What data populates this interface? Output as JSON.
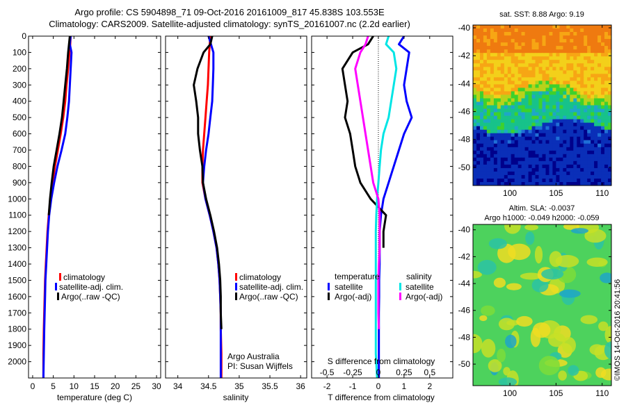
{
  "header": {
    "line1": "Argo profile: CS 5904898_71 09-Oct-2016 20161009_817 45.838S 103.553E",
    "line2": "Climatology: CARS2009. Satellite-adjusted climatology: synTS_20161007.nc (2.2d earlier)"
  },
  "stamp": "©IMOS 14-Oct-2016 20:41:56",
  "colors": {
    "climatology": "#ff0000",
    "satellite": "#0000ff",
    "argo": "#000000",
    "satellite_s": "#00e5e5",
    "argo_s": "#ff00ff"
  },
  "chart_data": [
    {
      "id": "temperature",
      "type": "line",
      "xlabel": "temperature (deg C)",
      "ylabel": "",
      "xlim": [
        -1,
        31
      ],
      "ylim": [
        2100,
        0
      ],
      "xticks": [
        0,
        5,
        10,
        15,
        20,
        25,
        30
      ],
      "yticks": [
        0,
        100,
        200,
        300,
        400,
        500,
        600,
        700,
        800,
        900,
        1000,
        1100,
        1200,
        1300,
        1400,
        1500,
        1600,
        1700,
        1800,
        1900,
        2000
      ],
      "legend": [
        "climatology",
        "satellite-adj. clim.",
        "Argo(..raw -QC)"
      ],
      "series": [
        {
          "name": "climatology",
          "color": "#ff0000",
          "x": [
            9.2,
            9.1,
            8.9,
            8.6,
            8.2,
            7.9,
            7.4,
            6.8,
            6.1,
            5.4,
            4.8,
            4.3,
            3.9,
            3.6,
            3.4,
            3.2,
            3.0,
            2.9,
            2.8,
            2.7,
            2.6,
            2.6
          ],
          "y": [
            0,
            50,
            100,
            200,
            300,
            400,
            500,
            600,
            700,
            800,
            900,
            1000,
            1100,
            1200,
            1300,
            1400,
            1500,
            1600,
            1700,
            1800,
            1950,
            2100
          ]
        },
        {
          "name": "satellite-adj. clim.",
          "color": "#0000ff",
          "x": [
            9.2,
            9.0,
            9.4,
            9.2,
            9.0,
            8.8,
            8.4,
            7.9,
            7.0,
            6.0,
            5.2,
            4.5,
            4.0,
            3.7,
            3.5,
            3.3,
            3.1,
            3.0,
            2.9,
            2.8,
            2.7,
            2.6
          ],
          "y": [
            0,
            50,
            100,
            200,
            300,
            400,
            500,
            600,
            700,
            800,
            900,
            1000,
            1100,
            1200,
            1300,
            1400,
            1500,
            1600,
            1700,
            1800,
            1950,
            2100
          ]
        },
        {
          "name": "Argo(..raw -QC)",
          "color": "#000000",
          "x": [
            9.0,
            8.8,
            8.6,
            8.3,
            7.9,
            7.5,
            7.1,
            6.5,
            5.8,
            5.1,
            4.6,
            4.2,
            3.9
          ],
          "y": [
            0,
            50,
            100,
            200,
            300,
            400,
            500,
            600,
            700,
            800,
            900,
            1000,
            1100
          ]
        }
      ]
    },
    {
      "id": "salinity",
      "type": "line",
      "xlabel": "salinity",
      "ylabel": "",
      "xlim": [
        33.8,
        36.1
      ],
      "ylim": [
        2100,
        0
      ],
      "xticks": [
        34,
        34.5,
        35,
        35.5,
        36
      ],
      "legend": [
        "climatology",
        "satellite-adj. clim.",
        "Argo(..raw -QC)"
      ],
      "annotations": [
        "Argo Australia",
        "PI: Susan Wijffels"
      ],
      "series": [
        {
          "name": "climatology",
          "color": "#ff0000",
          "x": [
            34.53,
            34.52,
            34.51,
            34.5,
            34.49,
            34.47,
            34.45,
            34.43,
            34.41,
            34.4,
            34.4,
            34.45,
            34.52,
            34.58,
            34.63,
            34.66,
            34.68,
            34.69,
            34.7,
            34.7,
            34.71,
            34.71
          ],
          "y": [
            0,
            50,
            100,
            200,
            300,
            400,
            500,
            600,
            700,
            800,
            900,
            1000,
            1100,
            1200,
            1300,
            1400,
            1500,
            1600,
            1700,
            1800,
            1950,
            2100
          ]
        },
        {
          "name": "satellite-adj. clim.",
          "color": "#0000ff",
          "x": [
            34.5,
            34.54,
            34.58,
            34.58,
            34.57,
            34.56,
            34.53,
            34.5,
            34.46,
            34.43,
            34.41,
            34.45,
            34.52,
            34.58,
            34.63,
            34.66,
            34.68,
            34.69,
            34.7,
            34.7,
            34.7,
            34.7
          ],
          "y": [
            0,
            50,
            100,
            200,
            300,
            400,
            500,
            600,
            700,
            800,
            900,
            1000,
            1100,
            1200,
            1300,
            1400,
            1500,
            1600,
            1700,
            1800,
            1950,
            2100
          ]
        },
        {
          "name": "Argo(..raw -QC)",
          "color": "#000000",
          "x": [
            34.56,
            34.53,
            34.42,
            34.32,
            34.26,
            34.3,
            34.33,
            34.33,
            34.36,
            34.4,
            34.41,
            34.46,
            34.53,
            34.59,
            34.64,
            34.67,
            34.69,
            34.7,
            34.7,
            34.71
          ],
          "y": [
            0,
            50,
            100,
            200,
            300,
            400,
            500,
            600,
            700,
            800,
            900,
            1000,
            1100,
            1200,
            1300,
            1400,
            1500,
            1600,
            1700,
            1800
          ]
        }
      ]
    },
    {
      "id": "differences",
      "type": "line",
      "xlabel": "T difference from climatology",
      "xlabel_top": "S difference from climatology",
      "ylabel": "",
      "xlim": [
        -2.6,
        2.9
      ],
      "ylim": [
        2100,
        0
      ],
      "xticks": [
        -2,
        -1,
        0,
        1,
        2
      ],
      "xticks_top": [
        -0.5,
        -0.25,
        0,
        0.25,
        0.5
      ],
      "xticks_top_labels": [
        "-0.5",
        "-0.25",
        "0",
        "0.25",
        "0.5"
      ],
      "legend_headers": [
        "temperature",
        "salinity"
      ],
      "legend": [
        "satellite",
        "Argo(-adj)",
        "satellite",
        "Argo(-adj)"
      ],
      "series": [
        {
          "name": "satellite",
          "color": "#0000ff",
          "x": [
            1.0,
            0.8,
            1.2,
            1.1,
            1.0,
            1.1,
            1.3,
            1.0,
            0.8,
            0.6,
            0.4,
            0.2,
            0.1,
            0.05,
            0.05,
            0.05,
            0.03,
            0.03,
            0.02,
            0.02,
            0.02,
            0.02
          ],
          "y": [
            0,
            50,
            100,
            200,
            300,
            400,
            500,
            600,
            700,
            800,
            900,
            1000,
            1100,
            1200,
            1300,
            1400,
            1500,
            1600,
            1700,
            1800,
            1950,
            2100
          ]
        },
        {
          "name": "Argo(-adj)",
          "color": "#000000",
          "x": [
            -0.2,
            -0.4,
            -1.0,
            -1.4,
            -1.3,
            -1.2,
            -1.3,
            -1.1,
            -1.0,
            -0.9,
            -0.7,
            -0.3,
            0.3,
            0.2,
            0.2,
            0.2
          ],
          "y": [
            0,
            50,
            100,
            200,
            300,
            400,
            500,
            600,
            700,
            800,
            900,
            1000,
            1100,
            1200,
            1250,
            1300
          ]
        },
        {
          "name": "satellite",
          "color": "#00e5e5",
          "x": [
            0.4,
            0.3,
            0.6,
            0.7,
            0.6,
            0.5,
            0.4,
            0.2,
            0.1,
            0.05,
            0.0,
            -0.05,
            -0.08,
            -0.1,
            -0.1,
            -0.1,
            -0.1,
            -0.1,
            -0.1,
            -0.1,
            -0.1,
            -0.05
          ],
          "y": [
            0,
            50,
            100,
            200,
            300,
            400,
            500,
            600,
            700,
            800,
            900,
            1000,
            1100,
            1200,
            1300,
            1400,
            1500,
            1600,
            1700,
            1800,
            1950,
            2100
          ]
        },
        {
          "name": "Argo(-adj)",
          "color": "#ff00ff",
          "x": [
            -0.4,
            -0.5,
            -0.7,
            -0.9,
            -0.8,
            -0.7,
            -0.6,
            -0.5,
            -0.4,
            -0.3,
            -0.2,
            0.0,
            0.05,
            0.05,
            0.05,
            0.02,
            0.0,
            0.0,
            0.0,
            0.02
          ],
          "y": [
            0,
            50,
            100,
            200,
            300,
            400,
            500,
            600,
            700,
            800,
            900,
            1000,
            1100,
            1200,
            1300,
            1400,
            1500,
            1600,
            1700,
            1800
          ]
        }
      ]
    },
    {
      "id": "sst_map",
      "type": "heatmap",
      "title": "sat. SST: 8.88 Argo: 9.19",
      "xlim": [
        96,
        111
      ],
      "ylim": [
        -51.3,
        -39.8
      ],
      "xticks": [
        100,
        105,
        110
      ],
      "yticks": [
        -40,
        -42,
        -44,
        -46,
        -48,
        -50
      ],
      "palette": [
        "#00008b",
        "#0a2fb8",
        "#1f6fd6",
        "#1fa6c8",
        "#17c28a",
        "#3ed12c",
        "#b9d21a",
        "#f3d01a",
        "#f7a614",
        "#ef7a10"
      ]
    },
    {
      "id": "sla_map",
      "type": "heatmap",
      "title": "Altim. SLA: -0.0037",
      "subtitle": "Argo h1000: -0.049 h2000: -0.059",
      "xlim": [
        96,
        111
      ],
      "ylim": [
        -51.6,
        -39.6
      ],
      "xticks": [
        100,
        105,
        110
      ],
      "yticks": [
        -40,
        -42,
        -44,
        -46,
        -48,
        -50
      ],
      "palette": [
        "#1fa6c8",
        "#2cc3a5",
        "#4dd25d",
        "#7ddd3a",
        "#c7e027",
        "#f0dd22"
      ]
    }
  ]
}
